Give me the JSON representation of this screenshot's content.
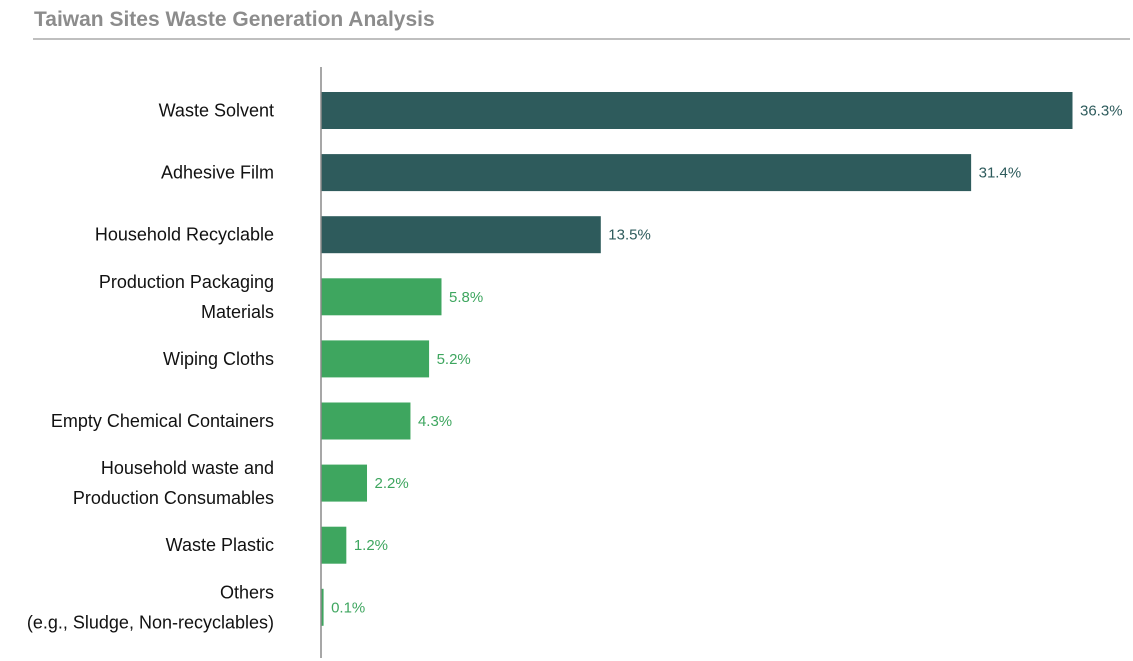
{
  "title": "Taiwan Sites Waste Generation Analysis",
  "colors": {
    "dark": "#2e5b5c",
    "green": "#3ea65f",
    "axis": "#8a8a8a",
    "title": "#8c8c8c",
    "rule": "#bfbfbf"
  },
  "chart_data": {
    "type": "bar",
    "orientation": "horizontal",
    "title": "Taiwan Sites Waste Generation Analysis",
    "xlabel": "",
    "ylabel": "",
    "unit": "%",
    "xlim": [
      0,
      36.3
    ],
    "grid": false,
    "legend": "none",
    "categories": [
      [
        "Waste Solvent"
      ],
      [
        "Adhesive Film"
      ],
      [
        "Household Recyclable"
      ],
      [
        "Production Packaging",
        "Materials"
      ],
      [
        "Wiping Cloths"
      ],
      [
        "Empty Chemical Containers"
      ],
      [
        "Household waste and",
        "Production Consumables"
      ],
      [
        "Waste Plastic"
      ],
      [
        "Others",
        "(e.g., Sludge, Non-recyclables)"
      ]
    ],
    "values": [
      36.3,
      31.4,
      13.5,
      5.8,
      5.2,
      4.3,
      2.2,
      1.2,
      0.1
    ],
    "value_labels": [
      "36.3%",
      "31.4%",
      "13.5%",
      "5.8%",
      "5.2%",
      "4.3%",
      "2.2%",
      "1.2%",
      "0.1%"
    ],
    "bar_color_groups": [
      "dark",
      "dark",
      "dark",
      "green",
      "green",
      "green",
      "green",
      "green",
      "green"
    ]
  }
}
